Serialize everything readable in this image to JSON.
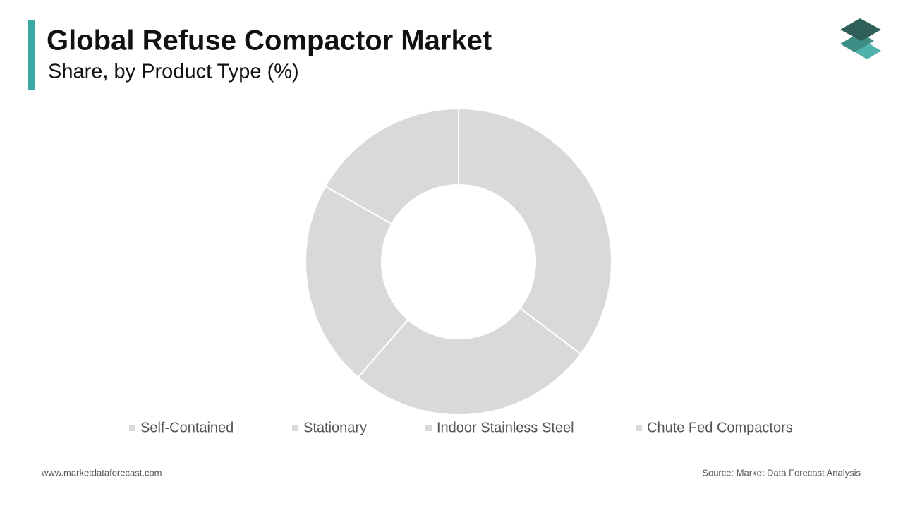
{
  "chart_data": {
    "type": "donut",
    "title": "Global Refuse Compactor Market",
    "subtitle": "Share, by Product Type (%)",
    "categories": [
      "Self-Contained",
      "Stationary",
      "Indoor Stainless Steel",
      "Chute Fed Compactors"
    ],
    "values": [
      35.3,
      26.1,
      21.8,
      16.8
    ],
    "colors": [
      "#d9d9d9",
      "#d9d9d9",
      "#d9d9d9",
      "#d9d9d9"
    ],
    "legend": "bottom"
  },
  "footer": {
    "website": "www.marketdataforecast.com",
    "source": "Source: Market Data Forecast Analysis"
  }
}
